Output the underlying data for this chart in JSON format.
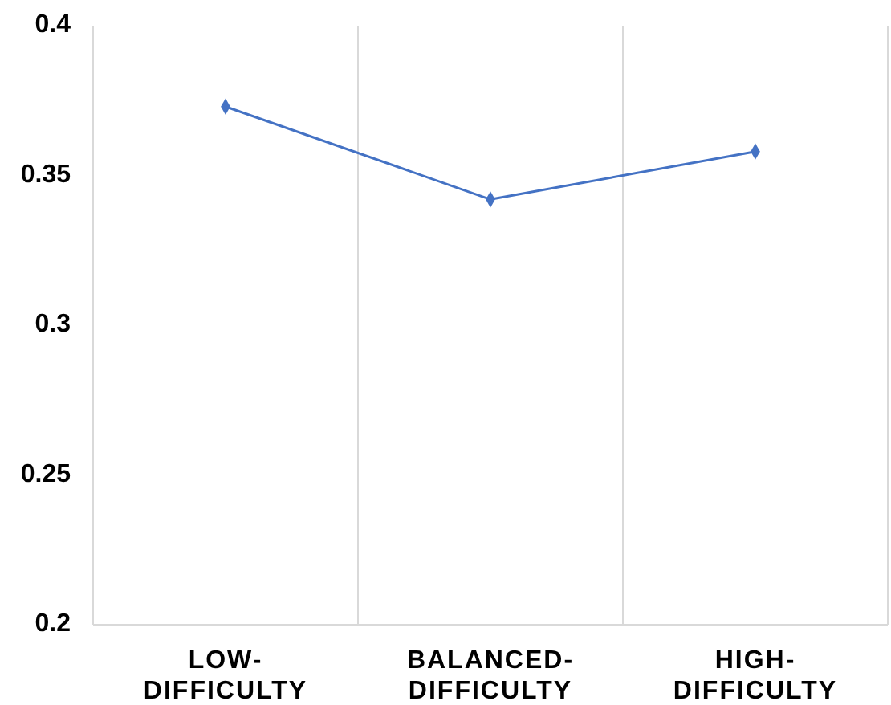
{
  "chart_data": {
    "type": "line",
    "categories": [
      "LOW-DIFFICULTY",
      "BALANCED-DIFFICULTY",
      "HIGH-DIFFICULTY"
    ],
    "series": [
      {
        "color": "#4472c4",
        "values": [
          0.373,
          0.342,
          0.358
        ]
      }
    ],
    "ylim": [
      0.2,
      0.4
    ],
    "yticks": [
      0.2,
      0.25,
      0.3,
      0.35,
      0.4
    ],
    "grid": "x",
    "marker": "diamond",
    "line_style": "solid"
  }
}
